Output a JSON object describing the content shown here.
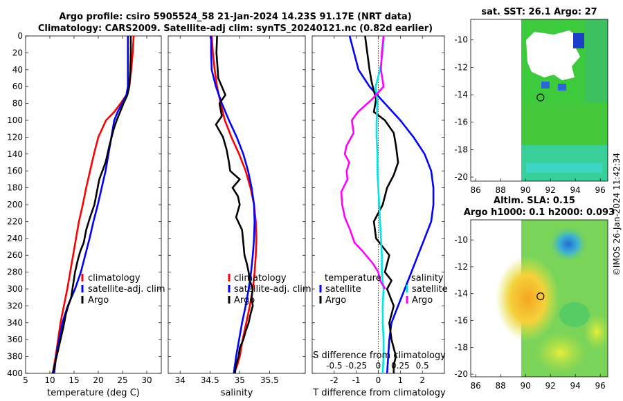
{
  "titles": {
    "line1": "Argo profile: csiro 5905524_58 21-Jan-2024 14.23S 91.17E (NRT data)",
    "line2": "Climatology: CARS2009. Satellite-adj clim: synTS_20240121.nc (0.82d earlier)"
  },
  "colors": {
    "climatology": "#ff0000",
    "satellite": "#0000ff",
    "argo": "#000000",
    "argo_t": "#00e5e5",
    "argo_s": "#ff00ff"
  },
  "watermark": "©IMOS 26-Jan-2024 11:42:34",
  "chart_data": [
    {
      "id": "temperature",
      "type": "line",
      "xlabel": "temperature (deg C)",
      "ylabel": "",
      "xlim": [
        5,
        33
      ],
      "ylim": [
        400,
        0
      ],
      "xticks": [
        "5",
        "10",
        "15",
        "20",
        "25",
        "30"
      ],
      "xtick_values": [
        5,
        10,
        15,
        20,
        25,
        30
      ],
      "yticks": [
        "0",
        "20",
        "40",
        "60",
        "80",
        "100",
        "120",
        "140",
        "160",
        "180",
        "200",
        "220",
        "240",
        "260",
        "280",
        "300",
        "320",
        "340",
        "360",
        "380",
        "400"
      ],
      "ytick_values": [
        0,
        20,
        40,
        60,
        80,
        100,
        120,
        140,
        160,
        180,
        200,
        220,
        240,
        260,
        280,
        300,
        320,
        340,
        360,
        380,
        400
      ],
      "legend": [
        "climatology",
        "satellite-adj. clim",
        "Argo"
      ],
      "series": [
        {
          "name": "climatology",
          "color": "#ff0000",
          "x": [
            27.3,
            27.1,
            26.8,
            26.4,
            25.8,
            24.6,
            23.3,
            21.6,
            20.0,
            19.1,
            18.3,
            17.5,
            16.8,
            16.0,
            15.4,
            14.8,
            14.2,
            13.6,
            12.9,
            12.2,
            11.7,
            11.2,
            10.6,
            10.3
          ],
          "y": [
            0,
            20,
            40,
            60,
            70,
            80,
            90,
            100,
            120,
            140,
            160,
            180,
            200,
            220,
            240,
            260,
            280,
            300,
            320,
            340,
            360,
            380,
            400,
            400
          ]
        },
        {
          "name": "satellite-adj. clim",
          "color": "#0000ff",
          "x": [
            26.1,
            26.1,
            26.1,
            26.1,
            25.8,
            24.9,
            24.0,
            23.3,
            22.7,
            22.1,
            21.5,
            20.7,
            19.9,
            19.0,
            18.2,
            17.3,
            16.4,
            15.2,
            13.7,
            12.6,
            11.9,
            11.3,
            10.9
          ],
          "y": [
            0,
            20,
            40,
            60,
            70,
            80,
            90,
            100,
            120,
            140,
            160,
            180,
            200,
            220,
            240,
            260,
            280,
            300,
            320,
            340,
            360,
            380,
            400
          ]
        },
        {
          "name": "Argo",
          "color": "#000000",
          "x": [
            26.7,
            26.7,
            26.6,
            26.4,
            26.0,
            25.2,
            24.5,
            23.8,
            23.2,
            22.3,
            21.5,
            20.2,
            19.7,
            19.2,
            18.3,
            17.5,
            17.0,
            16.3,
            15.8,
            15.2,
            14.8,
            14.4,
            13.8,
            13.3,
            12.8,
            12.2,
            11.6,
            11.0,
            10.6
          ],
          "y": [
            0,
            20,
            40,
            60,
            70,
            80,
            90,
            100,
            110,
            130,
            150,
            170,
            185,
            200,
            215,
            230,
            245,
            255,
            265,
            280,
            295,
            310,
            320,
            330,
            345,
            360,
            375,
            390,
            400
          ]
        }
      ]
    },
    {
      "id": "salinity",
      "type": "line",
      "xlabel": "salinity",
      "xlim": [
        33.8,
        36.1
      ],
      "ylim": [
        400,
        0
      ],
      "xticks": [
        "34",
        "34.5",
        "35",
        "35.5"
      ],
      "xtick_values": [
        34,
        34.5,
        35,
        35.5
      ],
      "legend": [
        "climatology",
        "satellite-adj. clim",
        "Argo"
      ],
      "series": [
        {
          "name": "climatology",
          "color": "#ff0000",
          "x": [
            34.53,
            34.55,
            34.58,
            34.62,
            34.68,
            34.75,
            34.86,
            34.99,
            35.1,
            35.18,
            35.24,
            35.27,
            35.28,
            35.27,
            35.25,
            35.22,
            35.17,
            35.11,
            35.05,
            35.0,
            34.96,
            34.93,
            34.91
          ],
          "y": [
            0,
            20,
            40,
            60,
            80,
            100,
            120,
            140,
            160,
            180,
            200,
            220,
            240,
            260,
            280,
            300,
            320,
            340,
            360,
            380,
            390,
            395,
            400
          ]
        },
        {
          "name": "satellite-adj. clim",
          "color": "#0000ff",
          "x": [
            34.52,
            34.52,
            34.53,
            34.6,
            34.7,
            34.82,
            34.95,
            35.06,
            35.14,
            35.2,
            35.24,
            35.25,
            35.24,
            35.22,
            35.19,
            35.15,
            35.1,
            35.04,
            34.99,
            34.94,
            34.9
          ],
          "y": [
            0,
            20,
            40,
            60,
            80,
            100,
            120,
            140,
            160,
            180,
            200,
            220,
            240,
            260,
            280,
            300,
            320,
            340,
            360,
            380,
            400
          ]
        },
        {
          "name": "Argo",
          "color": "#000000",
          "x": [
            34.62,
            34.61,
            34.63,
            34.64,
            34.7,
            34.76,
            34.66,
            34.7,
            34.6,
            34.72,
            34.78,
            34.82,
            34.84,
            35.0,
            34.88,
            34.97,
            35.0,
            34.94,
            35.04,
            35.06,
            35.08,
            35.12,
            35.15,
            35.17,
            35.22,
            35.2,
            35.22,
            35.18,
            35.15,
            35.1,
            35.06,
            35.0,
            34.98,
            34.94,
            34.92
          ],
          "y": [
            0,
            20,
            40,
            50,
            60,
            70,
            80,
            95,
            105,
            120,
            135,
            150,
            160,
            170,
            180,
            190,
            200,
            215,
            230,
            245,
            260,
            270,
            280,
            290,
            300,
            310,
            320,
            330,
            340,
            350,
            360,
            370,
            380,
            390,
            400
          ]
        }
      ]
    },
    {
      "id": "difference",
      "type": "line",
      "xlabel": "T difference from climatology",
      "xlabel_top": "S difference from climatology",
      "xlim": [
        -3,
        3
      ],
      "ylim": [
        400,
        0
      ],
      "xticks": [
        "-2",
        "-1",
        "0",
        "1",
        "2"
      ],
      "xtick_values": [
        -2,
        -1,
        0,
        1,
        2
      ],
      "sticks": [
        "-0.5",
        "-0.25",
        "0",
        "0.25",
        "0.5"
      ],
      "stick_values": [
        -0.5,
        -0.25,
        0,
        0.25,
        0.5
      ],
      "legend_left_title": "temperature",
      "legend_right_title": "salinity",
      "legend_left": [
        "satellite",
        "Argo"
      ],
      "legend_right": [
        "satellite",
        "Argo"
      ],
      "series": [
        {
          "name": "T satellite",
          "color": "#0000ff",
          "x": [
            -1.3,
            -1.1,
            -0.9,
            -0.4,
            0.3,
            1.0,
            1.6,
            2.1,
            2.4,
            2.5,
            2.5,
            2.4,
            2.1,
            1.8,
            1.5,
            1.2,
            0.9,
            0.6,
            0.5,
            0.4
          ],
          "y": [
            0,
            20,
            40,
            60,
            80,
            100,
            120,
            140,
            160,
            180,
            200,
            220,
            240,
            260,
            280,
            300,
            320,
            340,
            360,
            400
          ]
        },
        {
          "name": "T Argo",
          "color": "#000000",
          "x": [
            -0.6,
            -0.5,
            -0.4,
            -0.3,
            -0.2,
            -0.1,
            -0.2,
            0.3,
            0.7,
            0.8,
            0.9,
            0.7,
            0.4,
            0.2,
            -0.2,
            -0.1,
            0.2,
            0.5,
            0.3,
            0.6,
            0.4,
            0.7,
            0.5,
            0.6,
            0.8,
            0.7,
            0.7
          ],
          "y": [
            0,
            20,
            40,
            55,
            65,
            75,
            90,
            100,
            115,
            130,
            150,
            165,
            180,
            200,
            220,
            240,
            250,
            260,
            280,
            290,
            300,
            320,
            340,
            360,
            380,
            390,
            400
          ]
        },
        {
          "name": "S satellite",
          "color": "#00e5e5",
          "x": [
            0.06,
            0.05,
            0.02,
            -0.03,
            -0.01,
            -0.02,
            -0.02,
            -0.01,
            -0.01,
            0.0,
            0.01,
            0.02,
            0.03,
            0.04,
            0.04,
            0.06,
            0.05,
            0.05,
            0.06,
            0.06,
            0.05
          ],
          "y": [
            0,
            20,
            40,
            60,
            80,
            100,
            120,
            140,
            160,
            180,
            200,
            220,
            240,
            260,
            280,
            300,
            320,
            340,
            360,
            380,
            400
          ]
        },
        {
          "name": "S Argo",
          "color": "#ff00ff",
          "x": [
            0.06,
            0.04,
            0.03,
            0.06,
            -0.07,
            -0.23,
            -0.3,
            -0.28,
            -0.36,
            -0.38,
            -0.33,
            -0.36,
            -0.35,
            -0.42,
            -0.41,
            -0.38,
            -0.32,
            -0.27,
            -0.18,
            -0.06,
            0.0,
            0.02,
            0.08
          ],
          "y": [
            0,
            20,
            40,
            60,
            75,
            90,
            100,
            115,
            130,
            140,
            150,
            160,
            170,
            185,
            200,
            215,
            230,
            245,
            255,
            270,
            280,
            290,
            300
          ]
        }
      ]
    },
    {
      "id": "sst-map",
      "type": "heatmap",
      "title": "sat. SST: 26.1 Argo: 27",
      "xticks": [
        "86",
        "88",
        "90",
        "92",
        "94",
        "96"
      ],
      "xtick_values": [
        86,
        88,
        90,
        92,
        94,
        96
      ],
      "yticks": [
        "-10",
        "-12",
        "-14",
        "-16",
        "-18",
        "-20"
      ],
      "ytick_values": [
        -10,
        -12,
        -14,
        -16,
        -18,
        -20
      ],
      "xlim": [
        85.6,
        96.6
      ],
      "ylim": [
        -20.3,
        -8.5
      ],
      "data_lon_range": [
        90,
        96.6
      ],
      "marker": {
        "lon": 91.2,
        "lat": -14.2
      }
    },
    {
      "id": "sla-map",
      "type": "heatmap",
      "title1": "Altim. SLA: 0.15",
      "title2": "Argo h1000: 0.1 h2000: 0.093",
      "xticks": [
        "86",
        "88",
        "90",
        "92",
        "94",
        "96"
      ],
      "xtick_values": [
        86,
        88,
        90,
        92,
        94,
        96
      ],
      "yticks": [
        "-10",
        "-12",
        "-14",
        "-16",
        "-18",
        "-20"
      ],
      "ytick_values": [
        -10,
        -12,
        -14,
        -16,
        -18,
        -20
      ],
      "xlim": [
        85.6,
        96.6
      ],
      "ylim": [
        -20.2,
        -8.5
      ],
      "data_lon_range": [
        90,
        96.6
      ],
      "marker": {
        "lon": 91.2,
        "lat": -14.2
      }
    }
  ]
}
